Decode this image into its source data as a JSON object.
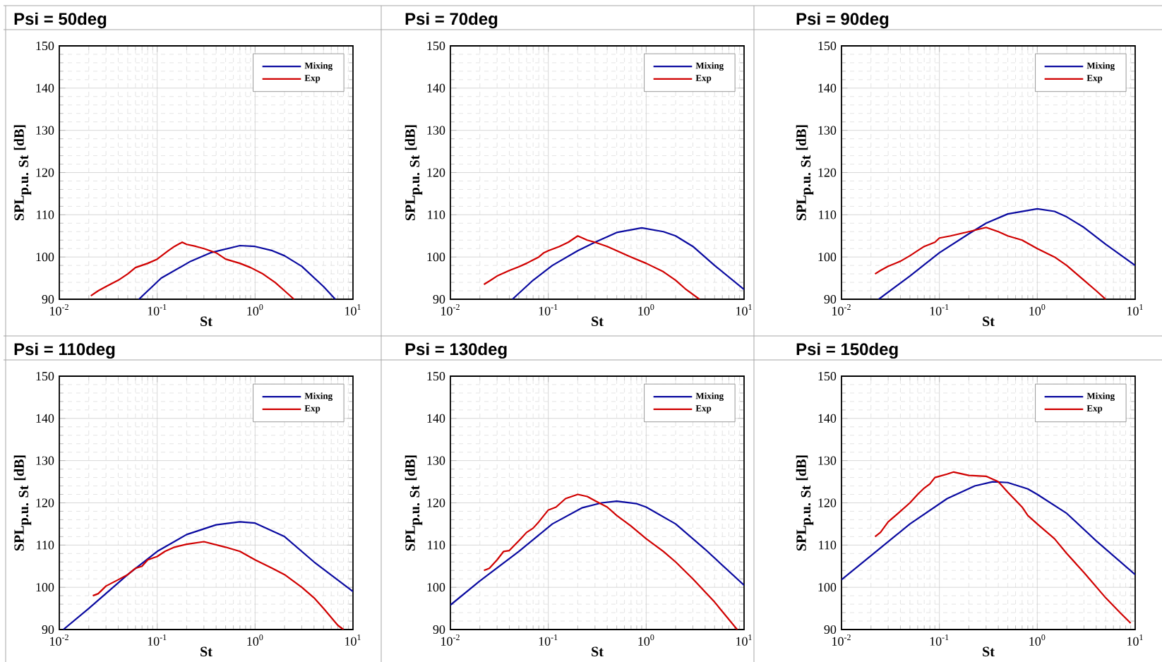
{
  "chart_data": [
    {
      "type": "line",
      "title": "Psi = 50deg",
      "xlabel": "St",
      "ylabel": "\\textbf{SPL}_{\\textbf{p.u. St}}\\ \\textbf{[dB]}",
      "log": "x",
      "grid": true,
      "legend": "top right",
      "marker": "none",
      "line_style": "solid",
      "xlim": [
        0.01,
        10
      ],
      "ylim": [
        90,
        150
      ],
      "xticks": [
        {
          "value": 0.01,
          "label": "10$^{-2}$"
        },
        {
          "value": 0.1,
          "label": "10$^{-1}$"
        },
        {
          "value": 1,
          "label": "10$^{0}$"
        },
        {
          "value": 10,
          "label": "10$^{1}$"
        }
      ],
      "yticks": [
        90,
        100,
        110,
        120,
        130,
        140,
        150
      ],
      "series": [
        {
          "name": "Mixing",
          "color": "#0a0aa0",
          "x": [
            0.065,
            0.11,
            0.22,
            0.35,
            0.7,
            1,
            1.5,
            2,
            3,
            5,
            6.6
          ],
          "values": [
            90,
            95,
            99,
            101,
            102.7,
            102.5,
            101.5,
            100.3,
            97.8,
            93,
            90
          ]
        },
        {
          "name": "Exp",
          "color": "#d00000",
          "x": [
            0.021,
            0.025,
            0.03,
            0.04,
            0.05,
            0.06,
            0.08,
            0.1,
            0.13,
            0.15,
            0.18,
            0.2,
            0.25,
            0.3,
            0.4,
            0.5,
            0.7,
            0.9,
            1.2,
            1.6,
            2,
            2.5
          ],
          "values": [
            90.8,
            92,
            93,
            94.5,
            96,
            97.5,
            98.5,
            99.5,
            101.5,
            102.5,
            103.5,
            103,
            102.5,
            102,
            101,
            99.5,
            98.5,
            97.5,
            96,
            94,
            92,
            90
          ]
        }
      ]
    },
    {
      "type": "line",
      "title": "Psi = 70deg",
      "xlabel": "St",
      "ylabel": "\\textbf{SPL}_{\\textbf{p.u. St}}\\ \\textbf{[dB]}",
      "log": "x",
      "grid": true,
      "legend": "top right",
      "marker": "none",
      "line_style": "solid",
      "xlim": [
        0.01,
        10
      ],
      "ylim": [
        90,
        150
      ],
      "xticks": [
        {
          "value": 0.01,
          "label": "10$^{-2}$"
        },
        {
          "value": 0.1,
          "label": "10$^{-1}$"
        },
        {
          "value": 1,
          "label": "10$^{0}$"
        },
        {
          "value": 10,
          "label": "10$^{1}$"
        }
      ],
      "yticks": [
        90,
        100,
        110,
        120,
        130,
        140,
        150
      ],
      "series": [
        {
          "name": "Mixing",
          "color": "#0a0aa0",
          "x": [
            0.043,
            0.07,
            0.11,
            0.2,
            0.3,
            0.5,
            0.9,
            1.5,
            2,
            3,
            5,
            10
          ],
          "values": [
            90,
            94.5,
            98,
            101.5,
            103.5,
            105.8,
            106.9,
            106,
            105,
            102.5,
            98,
            92.3
          ]
        },
        {
          "name": "Exp",
          "color": "#d00000",
          "x": [
            0.022,
            0.025,
            0.03,
            0.04,
            0.05,
            0.06,
            0.07,
            0.08,
            0.09,
            0.1,
            0.13,
            0.16,
            0.2,
            0.25,
            0.3,
            0.4,
            0.5,
            0.7,
            1,
            1.5,
            2,
            2.5,
            3.5
          ],
          "values": [
            93.5,
            94.3,
            95.5,
            96.8,
            97.7,
            98.5,
            99.3,
            100,
            101,
            101.5,
            102.5,
            103.5,
            105,
            104,
            103.5,
            102.5,
            101.5,
            100,
            98.5,
            96.5,
            94.5,
            92.5,
            90
          ]
        }
      ]
    },
    {
      "type": "line",
      "title": "Psi = 90deg",
      "xlabel": "St",
      "ylabel": "\\textbf{SPL}_{\\textbf{p.u. St}}\\ \\textbf{[dB]}",
      "log": "x",
      "grid": true,
      "legend": "top right",
      "marker": "none",
      "line_style": "solid",
      "xlim": [
        0.01,
        10
      ],
      "ylim": [
        90,
        150
      ],
      "xticks": [
        {
          "value": 0.01,
          "label": "10$^{-2}$"
        },
        {
          "value": 0.1,
          "label": "10$^{-1}$"
        },
        {
          "value": 1,
          "label": "10$^{0}$"
        },
        {
          "value": 10,
          "label": "10$^{1}$"
        }
      ],
      "yticks": [
        90,
        100,
        110,
        120,
        130,
        140,
        150
      ],
      "series": [
        {
          "name": "Mixing",
          "color": "#0a0aa0",
          "x": [
            0.024,
            0.05,
            0.1,
            0.2,
            0.3,
            0.5,
            1,
            1.5,
            2,
            3,
            5,
            10
          ],
          "values": [
            90,
            95.5,
            101,
            105.5,
            108,
            110.2,
            111.4,
            110.8,
            109.5,
            107,
            103,
            98
          ]
        },
        {
          "name": "Exp",
          "color": "#d00000",
          "x": [
            0.022,
            0.025,
            0.03,
            0.04,
            0.05,
            0.06,
            0.07,
            0.09,
            0.1,
            0.13,
            0.2,
            0.3,
            0.4,
            0.5,
            0.7,
            1,
            1.5,
            2,
            3,
            4,
            5
          ],
          "values": [
            96,
            96.8,
            97.8,
            99,
            100.3,
            101.5,
            102.5,
            103.5,
            104.5,
            105,
            106,
            107,
            106,
            105,
            104,
            102,
            100,
            98,
            94.5,
            92,
            90
          ]
        }
      ]
    },
    {
      "type": "line",
      "title": "Psi = 110deg",
      "xlabel": "St",
      "ylabel": "\\textbf{SPL}_{\\textbf{p.u. St}}\\ \\textbf{[dB]}",
      "log": "x",
      "grid": true,
      "legend": "top right",
      "marker": "none",
      "line_style": "solid",
      "xlim": [
        0.01,
        10
      ],
      "ylim": [
        90,
        150
      ],
      "xticks": [
        {
          "value": 0.01,
          "label": "10$^{-2}$"
        },
        {
          "value": 0.1,
          "label": "10$^{-1}$"
        },
        {
          "value": 1,
          "label": "10$^{0}$"
        },
        {
          "value": 10,
          "label": "10$^{1}$"
        }
      ],
      "yticks": [
        90,
        100,
        110,
        120,
        130,
        140,
        150
      ],
      "series": [
        {
          "name": "Mixing",
          "color": "#0a0aa0",
          "x": [
            0.011,
            0.02,
            0.05,
            0.1,
            0.2,
            0.4,
            0.7,
            1,
            2,
            4,
            10
          ],
          "values": [
            90,
            95,
            103,
            108.5,
            112.5,
            114.8,
            115.5,
            115.2,
            112,
            106,
            99
          ]
        },
        {
          "name": "Exp",
          "color": "#d00000",
          "x": [
            0.022,
            0.025,
            0.03,
            0.04,
            0.05,
            0.06,
            0.07,
            0.08,
            0.1,
            0.12,
            0.15,
            0.2,
            0.3,
            0.5,
            0.7,
            1,
            1.5,
            2,
            3,
            4,
            5,
            7,
            8
          ],
          "values": [
            98,
            98.5,
            100.3,
            101.8,
            103,
            104.5,
            105,
            106.5,
            107.3,
            108.5,
            109.5,
            110.2,
            110.8,
            109.5,
            108.5,
            106.5,
            104.5,
            103,
            100,
            97.5,
            95,
            91,
            90
          ]
        }
      ]
    },
    {
      "type": "line",
      "title": "Psi = 130deg",
      "xlabel": "St",
      "ylabel": "\\textbf{SPL}_{\\textbf{p.u. St}}\\ \\textbf{[dB]}",
      "log": "x",
      "grid": true,
      "legend": "top right",
      "marker": "none",
      "line_style": "solid",
      "xlim": [
        0.01,
        10
      ],
      "ylim": [
        90,
        150
      ],
      "xticks": [
        {
          "value": 0.01,
          "label": "10$^{-2}$"
        },
        {
          "value": 0.1,
          "label": "10$^{-1}$"
        },
        {
          "value": 1,
          "label": "10$^{0}$"
        },
        {
          "value": 10,
          "label": "10$^{1}$"
        }
      ],
      "yticks": [
        90,
        100,
        110,
        120,
        130,
        140,
        150
      ],
      "series": [
        {
          "name": "Mixing",
          "color": "#0a0aa0",
          "x": [
            0.01,
            0.02,
            0.05,
            0.11,
            0.22,
            0.35,
            0.5,
            0.8,
            1,
            2,
            4,
            10
          ],
          "values": [
            95.8,
            101.5,
            108.5,
            115,
            118.8,
            120,
            120.4,
            119.8,
            119,
            115,
            109,
            100.5
          ]
        },
        {
          "name": "Exp",
          "color": "#d00000",
          "x": [
            0.022,
            0.025,
            0.03,
            0.035,
            0.04,
            0.05,
            0.06,
            0.07,
            0.08,
            0.1,
            0.12,
            0.15,
            0.2,
            0.25,
            0.3,
            0.4,
            0.5,
            0.7,
            1,
            1.5,
            2,
            3,
            5,
            8.5
          ],
          "values": [
            104,
            104.5,
            106.5,
            108.5,
            108.7,
            111,
            113,
            114,
            115.5,
            118.3,
            119,
            121,
            122,
            121.5,
            120.5,
            119,
            117,
            114.5,
            111.5,
            108.5,
            106,
            102,
            96.5,
            90
          ]
        }
      ]
    },
    {
      "type": "line",
      "title": "Psi = 150deg",
      "xlabel": "St",
      "ylabel": "\\textbf{SPL}_{\\textbf{p.u. St}}\\ \\textbf{[dB]}",
      "log": "x",
      "grid": true,
      "legend": "top right",
      "marker": "none",
      "line_style": "solid",
      "xlim": [
        0.01,
        10
      ],
      "ylim": [
        90,
        150
      ],
      "xticks": [
        {
          "value": 0.01,
          "label": "10$^{-2}$"
        },
        {
          "value": 0.1,
          "label": "10$^{-1}$"
        },
        {
          "value": 1,
          "label": "10$^{0}$"
        },
        {
          "value": 10,
          "label": "10$^{1}$"
        }
      ],
      "yticks": [
        90,
        100,
        110,
        120,
        130,
        140,
        150
      ],
      "series": [
        {
          "name": "Mixing",
          "color": "#0a0aa0",
          "x": [
            0.01,
            0.02,
            0.05,
            0.12,
            0.23,
            0.35,
            0.5,
            0.8,
            1,
            2,
            4,
            10
          ],
          "values": [
            101.8,
            107.5,
            115,
            121,
            124,
            125,
            124.8,
            123.3,
            122,
            117.5,
            111,
            103
          ]
        },
        {
          "name": "Exp",
          "color": "#d00000",
          "x": [
            0.022,
            0.025,
            0.03,
            0.04,
            0.05,
            0.06,
            0.07,
            0.08,
            0.09,
            0.12,
            0.14,
            0.2,
            0.3,
            0.4,
            0.5,
            0.7,
            0.8,
            1,
            1.5,
            2,
            3,
            5,
            7,
            9
          ],
          "values": [
            112,
            113,
            115.5,
            118,
            120,
            122,
            123.5,
            124.5,
            126,
            126.8,
            127.3,
            126.5,
            126.3,
            125,
            122.5,
            119,
            117,
            115,
            111.5,
            108,
            103.5,
            97.5,
            94,
            91.5
          ]
        }
      ]
    }
  ]
}
